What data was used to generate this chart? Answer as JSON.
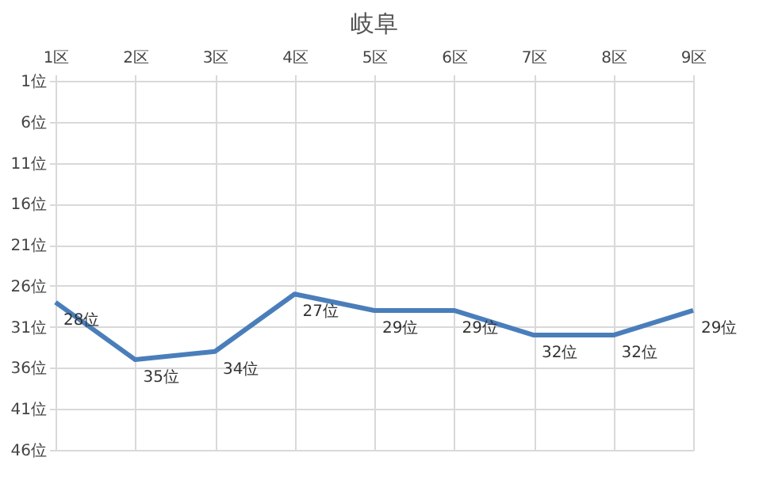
{
  "chart_data": {
    "type": "line",
    "title": "岐阜",
    "categories": [
      "1区",
      "2区",
      "3区",
      "4区",
      "5区",
      "6区",
      "7区",
      "8区",
      "9区"
    ],
    "series": [
      {
        "color": "#4a7ebb",
        "values": [
          28,
          35,
          34,
          27,
          29,
          29,
          32,
          32,
          29
        ],
        "value_labels": [
          "28位",
          "35位",
          "34位",
          "27位",
          "29位",
          "29位",
          "32位",
          "32位",
          "29位"
        ]
      }
    ],
    "ylim": [
      46,
      1
    ],
    "yticks": [
      {
        "value": 1,
        "label": "1位"
      },
      {
        "value": 6,
        "label": "6位"
      },
      {
        "value": 11,
        "label": "11位"
      },
      {
        "value": 16,
        "label": "16位"
      },
      {
        "value": 21,
        "label": "21位"
      },
      {
        "value": 26,
        "label": "26位"
      },
      {
        "value": 31,
        "label": "31位"
      },
      {
        "value": 36,
        "label": "36位"
      },
      {
        "value": 41,
        "label": "41位"
      },
      {
        "value": 46,
        "label": "46位"
      }
    ],
    "grid": true,
    "marker": "none",
    "line_style": "solid"
  }
}
